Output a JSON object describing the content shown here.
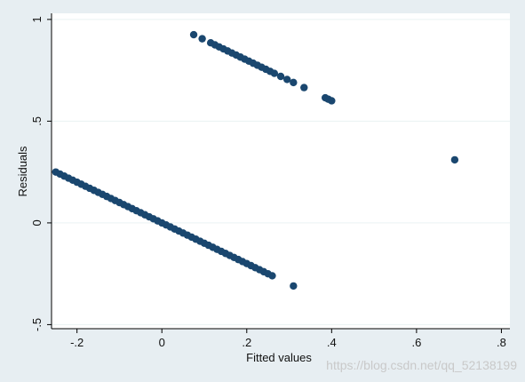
{
  "chart_data": {
    "type": "scatter",
    "title": "",
    "xlabel": "Fitted values",
    "ylabel": "Residuals",
    "xlim": [
      -0.26,
      0.82
    ],
    "ylim": [
      -0.52,
      1.03
    ],
    "xticks": [
      -0.2,
      0,
      0.2,
      0.4,
      0.6,
      0.8
    ],
    "xtick_labels": [
      "-.2",
      "0",
      ".2",
      ".4",
      ".6",
      ".8"
    ],
    "yticks": [
      -0.5,
      0,
      0.5,
      1
    ],
    "ytick_labels": [
      "-.5",
      "0",
      ".5",
      "1"
    ],
    "grid": "horizontal",
    "marker_color": "#1a476f",
    "plot_background": "#ffffff",
    "page_background": "#e7eef2",
    "series": [
      {
        "points": [
          [
            -0.25,
            0.25
          ],
          [
            -0.24,
            0.24
          ],
          [
            -0.23,
            0.23
          ],
          [
            -0.22,
            0.22
          ],
          [
            -0.21,
            0.21
          ],
          [
            -0.2,
            0.2
          ],
          [
            -0.19,
            0.19
          ],
          [
            -0.18,
            0.18
          ],
          [
            -0.17,
            0.17
          ],
          [
            -0.16,
            0.16
          ],
          [
            -0.15,
            0.15
          ],
          [
            -0.14,
            0.14
          ],
          [
            -0.13,
            0.13
          ],
          [
            -0.12,
            0.12
          ],
          [
            -0.11,
            0.11
          ],
          [
            -0.1,
            0.1
          ],
          [
            -0.09,
            0.09
          ],
          [
            -0.08,
            0.08
          ],
          [
            -0.07,
            0.07
          ],
          [
            -0.06,
            0.06
          ],
          [
            -0.05,
            0.05
          ],
          [
            -0.04,
            0.04
          ],
          [
            -0.03,
            0.03
          ],
          [
            -0.02,
            0.02
          ],
          [
            -0.01,
            0.01
          ],
          [
            0.0,
            0.0
          ],
          [
            0.01,
            -0.01
          ],
          [
            0.02,
            -0.02
          ],
          [
            0.03,
            -0.03
          ],
          [
            0.04,
            -0.04
          ],
          [
            0.05,
            -0.05
          ],
          [
            0.06,
            -0.06
          ],
          [
            0.07,
            -0.07
          ],
          [
            0.08,
            -0.08
          ],
          [
            0.09,
            -0.09
          ],
          [
            0.1,
            -0.1
          ],
          [
            0.11,
            -0.11
          ],
          [
            0.12,
            -0.12
          ],
          [
            0.13,
            -0.13
          ],
          [
            0.14,
            -0.14
          ],
          [
            0.15,
            -0.15
          ],
          [
            0.16,
            -0.16
          ],
          [
            0.17,
            -0.17
          ],
          [
            0.18,
            -0.18
          ],
          [
            0.19,
            -0.19
          ],
          [
            0.2,
            -0.2
          ],
          [
            0.21,
            -0.21
          ],
          [
            0.22,
            -0.22
          ],
          [
            0.23,
            -0.23
          ],
          [
            0.24,
            -0.24
          ],
          [
            0.25,
            -0.25
          ],
          [
            0.26,
            -0.26
          ],
          [
            0.31,
            -0.31
          ],
          [
            0.075,
            0.925
          ],
          [
            0.095,
            0.905
          ],
          [
            0.115,
            0.885
          ],
          [
            0.125,
            0.875
          ],
          [
            0.135,
            0.865
          ],
          [
            0.145,
            0.855
          ],
          [
            0.155,
            0.845
          ],
          [
            0.165,
            0.835
          ],
          [
            0.175,
            0.825
          ],
          [
            0.185,
            0.815
          ],
          [
            0.195,
            0.805
          ],
          [
            0.205,
            0.795
          ],
          [
            0.215,
            0.785
          ],
          [
            0.225,
            0.775
          ],
          [
            0.235,
            0.765
          ],
          [
            0.245,
            0.755
          ],
          [
            0.255,
            0.745
          ],
          [
            0.265,
            0.735
          ],
          [
            0.28,
            0.72
          ],
          [
            0.295,
            0.705
          ],
          [
            0.31,
            0.69
          ],
          [
            0.335,
            0.665
          ],
          [
            0.385,
            0.615
          ],
          [
            0.392,
            0.608
          ],
          [
            0.4,
            0.6
          ],
          [
            0.69,
            0.31
          ]
        ]
      }
    ]
  },
  "watermark": "https://blog.csdn.net/qq_52138199"
}
